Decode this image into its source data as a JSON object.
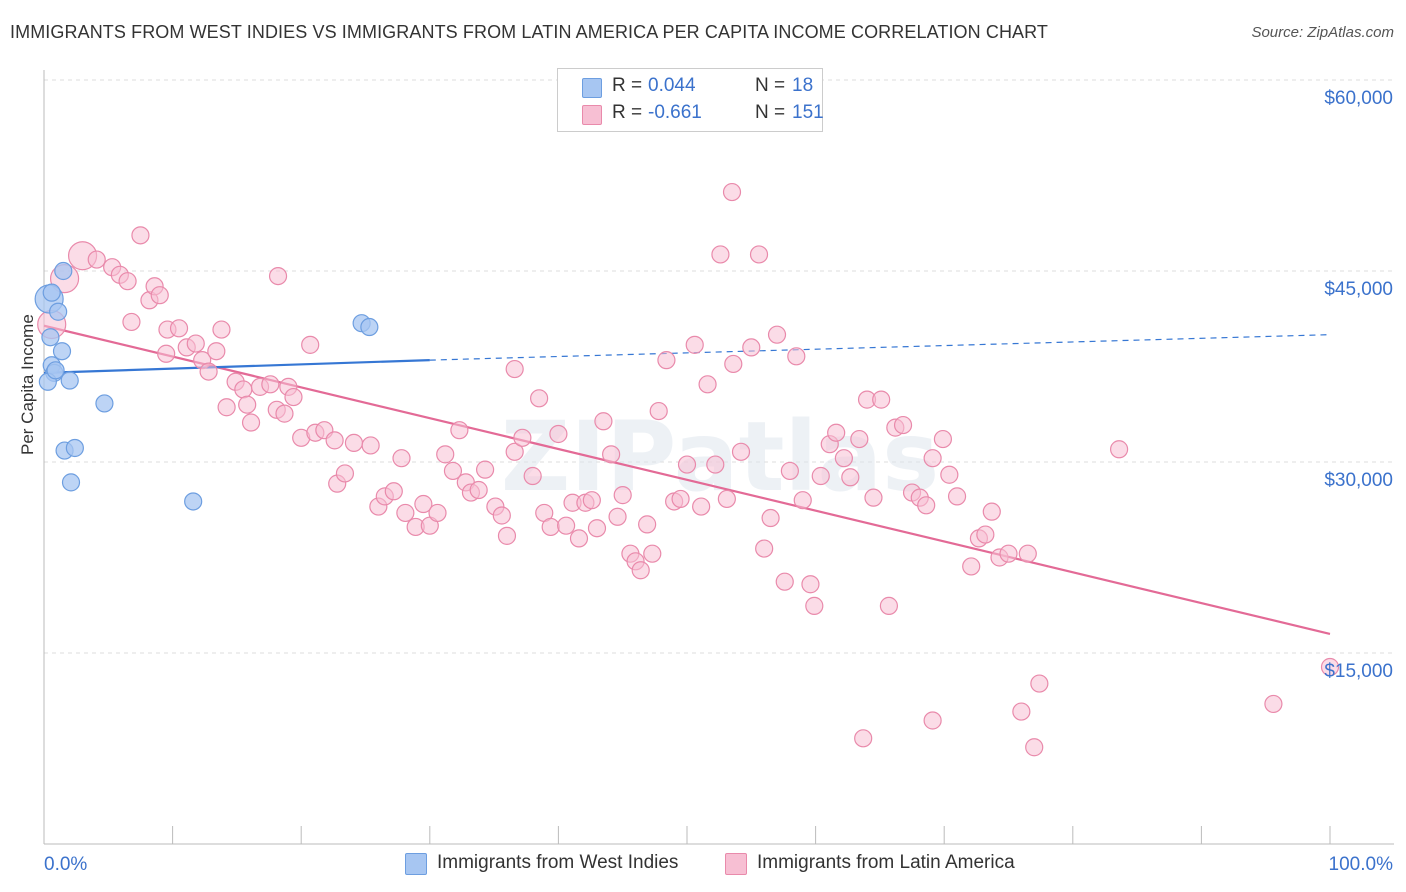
{
  "title": "IMMIGRANTS FROM WEST INDIES VS IMMIGRANTS FROM LATIN AMERICA PER CAPITA INCOME CORRELATION CHART",
  "source": "Source: ZipAtlas.com",
  "watermark": "ZIPatlas",
  "legend": {
    "rows": [
      {
        "r_label": "R =",
        "r_value": "0.044",
        "n_label": "N =",
        "n_value": "18",
        "color": "#a7c6f2",
        "stroke": "#6d9ee0"
      },
      {
        "r_label": "R =",
        "r_value": "-0.661",
        "n_label": "N =",
        "n_value": "151",
        "color": "#f7bfd3",
        "stroke": "#e98aab"
      }
    ]
  },
  "bottom_legend": [
    {
      "label": "Immigrants from West Indies",
      "color": "#a7c6f2",
      "stroke": "#6d9ee0"
    },
    {
      "label": "Immigrants from Latin America",
      "color": "#f7bfd3",
      "stroke": "#e98aab"
    }
  ],
  "chart_data": {
    "type": "scatter",
    "title": "IMMIGRANTS FROM WEST INDIES VS IMMIGRANTS FROM LATIN AMERICA PER CAPITA INCOME CORRELATION CHART",
    "xlabel": "",
    "ylabel": "Per Capita Income",
    "x_tick_labels": [
      "0.0%",
      "100.0%"
    ],
    "y_tick_labels": [
      "$15,000",
      "$30,000",
      "$45,000",
      "$60,000"
    ],
    "y_ticks": [
      15000,
      30000,
      45000,
      60000
    ],
    "xlim": [
      0,
      100
    ],
    "ylim": [
      0,
      63000
    ],
    "grid": true,
    "series": [
      {
        "name": "Immigrants from West Indies",
        "color": "#6d9ee0",
        "fill": "#a7c6f2",
        "line_color": "#3677d4",
        "trend": {
          "x0": 0,
          "y0": 37000,
          "x1": 30,
          "y1": 38000,
          "dash_x1": 100,
          "dash_y1": 40000
        },
        "points": [
          {
            "x": 0.4,
            "y": 42800,
            "big": true
          },
          {
            "x": 0.6,
            "y": 43300
          },
          {
            "x": 1.5,
            "y": 45000
          },
          {
            "x": 1.1,
            "y": 41800
          },
          {
            "x": 0.5,
            "y": 39800
          },
          {
            "x": 1.4,
            "y": 38700
          },
          {
            "x": 0.6,
            "y": 37600
          },
          {
            "x": 0.8,
            "y": 37000
          },
          {
            "x": 0.3,
            "y": 36300
          },
          {
            "x": 2.0,
            "y": 36400
          },
          {
            "x": 4.7,
            "y": 34600
          },
          {
            "x": 1.6,
            "y": 30900
          },
          {
            "x": 2.4,
            "y": 31100
          },
          {
            "x": 2.1,
            "y": 28400
          },
          {
            "x": 11.6,
            "y": 26900
          },
          {
            "x": 24.7,
            "y": 40900
          },
          {
            "x": 25.3,
            "y": 40600
          },
          {
            "x": 0.9,
            "y": 37200
          }
        ]
      },
      {
        "name": "Immigrants from Latin America",
        "color": "#e98aab",
        "fill": "#f7bfd3",
        "line_color": "#e36a96",
        "trend": {
          "x0": 0,
          "y0": 40700,
          "x1": 100,
          "y1": 16500
        },
        "points": [
          {
            "x": 0.6,
            "y": 40800,
            "big": true
          },
          {
            "x": 1.6,
            "y": 44400,
            "big": true
          },
          {
            "x": 3.0,
            "y": 46200,
            "big": true
          },
          {
            "x": 4.1,
            "y": 45900
          },
          {
            "x": 5.3,
            "y": 45300
          },
          {
            "x": 5.9,
            "y": 44700
          },
          {
            "x": 7.5,
            "y": 47800
          },
          {
            "x": 6.5,
            "y": 44200
          },
          {
            "x": 8.2,
            "y": 42700
          },
          {
            "x": 8.6,
            "y": 43800
          },
          {
            "x": 9.0,
            "y": 43100
          },
          {
            "x": 6.8,
            "y": 41000
          },
          {
            "x": 9.6,
            "y": 40400
          },
          {
            "x": 10.5,
            "y": 40500
          },
          {
            "x": 9.5,
            "y": 38500
          },
          {
            "x": 11.1,
            "y": 39000
          },
          {
            "x": 11.8,
            "y": 39300
          },
          {
            "x": 12.3,
            "y": 38000
          },
          {
            "x": 13.4,
            "y": 38700
          },
          {
            "x": 13.8,
            "y": 40400
          },
          {
            "x": 12.8,
            "y": 37100
          },
          {
            "x": 14.9,
            "y": 36300
          },
          {
            "x": 15.5,
            "y": 35700
          },
          {
            "x": 14.2,
            "y": 34300
          },
          {
            "x": 15.8,
            "y": 34500
          },
          {
            "x": 16.8,
            "y": 35900
          },
          {
            "x": 17.6,
            "y": 36100
          },
          {
            "x": 18.1,
            "y": 34100
          },
          {
            "x": 16.1,
            "y": 33100
          },
          {
            "x": 19.0,
            "y": 35900
          },
          {
            "x": 19.4,
            "y": 35100
          },
          {
            "x": 18.7,
            "y": 33800
          },
          {
            "x": 20.0,
            "y": 31900
          },
          {
            "x": 21.1,
            "y": 32300
          },
          {
            "x": 21.8,
            "y": 32500
          },
          {
            "x": 22.6,
            "y": 31700
          },
          {
            "x": 20.7,
            "y": 39200
          },
          {
            "x": 18.2,
            "y": 44600
          },
          {
            "x": 22.8,
            "y": 28300
          },
          {
            "x": 23.4,
            "y": 29100
          },
          {
            "x": 24.1,
            "y": 31500
          },
          {
            "x": 25.4,
            "y": 31300
          },
          {
            "x": 26.0,
            "y": 26500
          },
          {
            "x": 26.5,
            "y": 27300
          },
          {
            "x": 27.2,
            "y": 27700
          },
          {
            "x": 27.8,
            "y": 30300
          },
          {
            "x": 28.1,
            "y": 26000
          },
          {
            "x": 28.9,
            "y": 24900
          },
          {
            "x": 29.5,
            "y": 26700
          },
          {
            "x": 30.0,
            "y": 25000
          },
          {
            "x": 30.6,
            "y": 26000
          },
          {
            "x": 31.2,
            "y": 30600
          },
          {
            "x": 31.8,
            "y": 29300
          },
          {
            "x": 32.3,
            "y": 32500
          },
          {
            "x": 32.8,
            "y": 28400
          },
          {
            "x": 33.2,
            "y": 27600
          },
          {
            "x": 33.8,
            "y": 27800
          },
          {
            "x": 34.3,
            "y": 29400
          },
          {
            "x": 35.1,
            "y": 26500
          },
          {
            "x": 35.6,
            "y": 25800
          },
          {
            "x": 36.0,
            "y": 24200
          },
          {
            "x": 36.6,
            "y": 30800
          },
          {
            "x": 37.2,
            "y": 31900
          },
          {
            "x": 36.6,
            "y": 37300
          },
          {
            "x": 38.0,
            "y": 28900
          },
          {
            "x": 38.5,
            "y": 35000
          },
          {
            "x": 38.9,
            "y": 26000
          },
          {
            "x": 39.4,
            "y": 24900
          },
          {
            "x": 40.0,
            "y": 32200
          },
          {
            "x": 40.6,
            "y": 25000
          },
          {
            "x": 41.1,
            "y": 26800
          },
          {
            "x": 41.6,
            "y": 24000
          },
          {
            "x": 42.1,
            "y": 26800
          },
          {
            "x": 42.6,
            "y": 27000
          },
          {
            "x": 43.0,
            "y": 24800
          },
          {
            "x": 43.5,
            "y": 33200
          },
          {
            "x": 44.1,
            "y": 30600
          },
          {
            "x": 44.6,
            "y": 25700
          },
          {
            "x": 45.0,
            "y": 27400
          },
          {
            "x": 45.6,
            "y": 22800
          },
          {
            "x": 46.0,
            "y": 22200
          },
          {
            "x": 46.4,
            "y": 21500
          },
          {
            "x": 46.9,
            "y": 25100
          },
          {
            "x": 47.3,
            "y": 22800
          },
          {
            "x": 47.8,
            "y": 34000
          },
          {
            "x": 48.4,
            "y": 38000
          },
          {
            "x": 49.0,
            "y": 26900
          },
          {
            "x": 49.5,
            "y": 27100
          },
          {
            "x": 50.0,
            "y": 29800
          },
          {
            "x": 50.6,
            "y": 39200
          },
          {
            "x": 51.1,
            "y": 26500
          },
          {
            "x": 51.6,
            "y": 36100
          },
          {
            "x": 52.2,
            "y": 29800
          },
          {
            "x": 52.6,
            "y": 46300
          },
          {
            "x": 53.1,
            "y": 27100
          },
          {
            "x": 53.6,
            "y": 37700
          },
          {
            "x": 54.2,
            "y": 30800
          },
          {
            "x": 53.5,
            "y": 51200
          },
          {
            "x": 55.0,
            "y": 39000
          },
          {
            "x": 55.6,
            "y": 46300
          },
          {
            "x": 56.0,
            "y": 23200
          },
          {
            "x": 56.5,
            "y": 25600
          },
          {
            "x": 57.0,
            "y": 40000
          },
          {
            "x": 57.6,
            "y": 20600
          },
          {
            "x": 58.0,
            "y": 29300
          },
          {
            "x": 58.5,
            "y": 38300
          },
          {
            "x": 59.0,
            "y": 27000
          },
          {
            "x": 59.6,
            "y": 20400
          },
          {
            "x": 59.9,
            "y": 18700
          },
          {
            "x": 60.4,
            "y": 28900
          },
          {
            "x": 61.1,
            "y": 31400
          },
          {
            "x": 61.6,
            "y": 32300
          },
          {
            "x": 62.2,
            "y": 30300
          },
          {
            "x": 62.7,
            "y": 28800
          },
          {
            "x": 63.4,
            "y": 31800
          },
          {
            "x": 64.0,
            "y": 34900
          },
          {
            "x": 64.5,
            "y": 27200
          },
          {
            "x": 65.1,
            "y": 34900
          },
          {
            "x": 65.7,
            "y": 18700
          },
          {
            "x": 66.2,
            "y": 32700
          },
          {
            "x": 66.8,
            "y": 32900
          },
          {
            "x": 67.5,
            "y": 27600
          },
          {
            "x": 68.1,
            "y": 27200
          },
          {
            "x": 68.6,
            "y": 26600
          },
          {
            "x": 69.1,
            "y": 30300
          },
          {
            "x": 69.9,
            "y": 31800
          },
          {
            "x": 70.4,
            "y": 29000
          },
          {
            "x": 71.0,
            "y": 27300
          },
          {
            "x": 72.1,
            "y": 21800
          },
          {
            "x": 72.7,
            "y": 24000
          },
          {
            "x": 73.2,
            "y": 24300
          },
          {
            "x": 73.7,
            "y": 26100
          },
          {
            "x": 74.3,
            "y": 22500
          },
          {
            "x": 75.0,
            "y": 22800
          },
          {
            "x": 76.5,
            "y": 22800
          },
          {
            "x": 77.4,
            "y": 12600
          },
          {
            "x": 76.0,
            "y": 10400
          },
          {
            "x": 77.0,
            "y": 7600
          },
          {
            "x": 69.1,
            "y": 9700
          },
          {
            "x": 63.7,
            "y": 8300
          },
          {
            "x": 83.6,
            "y": 31000
          },
          {
            "x": 95.6,
            "y": 11000
          },
          {
            "x": 100.0,
            "y": 13900
          }
        ]
      }
    ]
  }
}
